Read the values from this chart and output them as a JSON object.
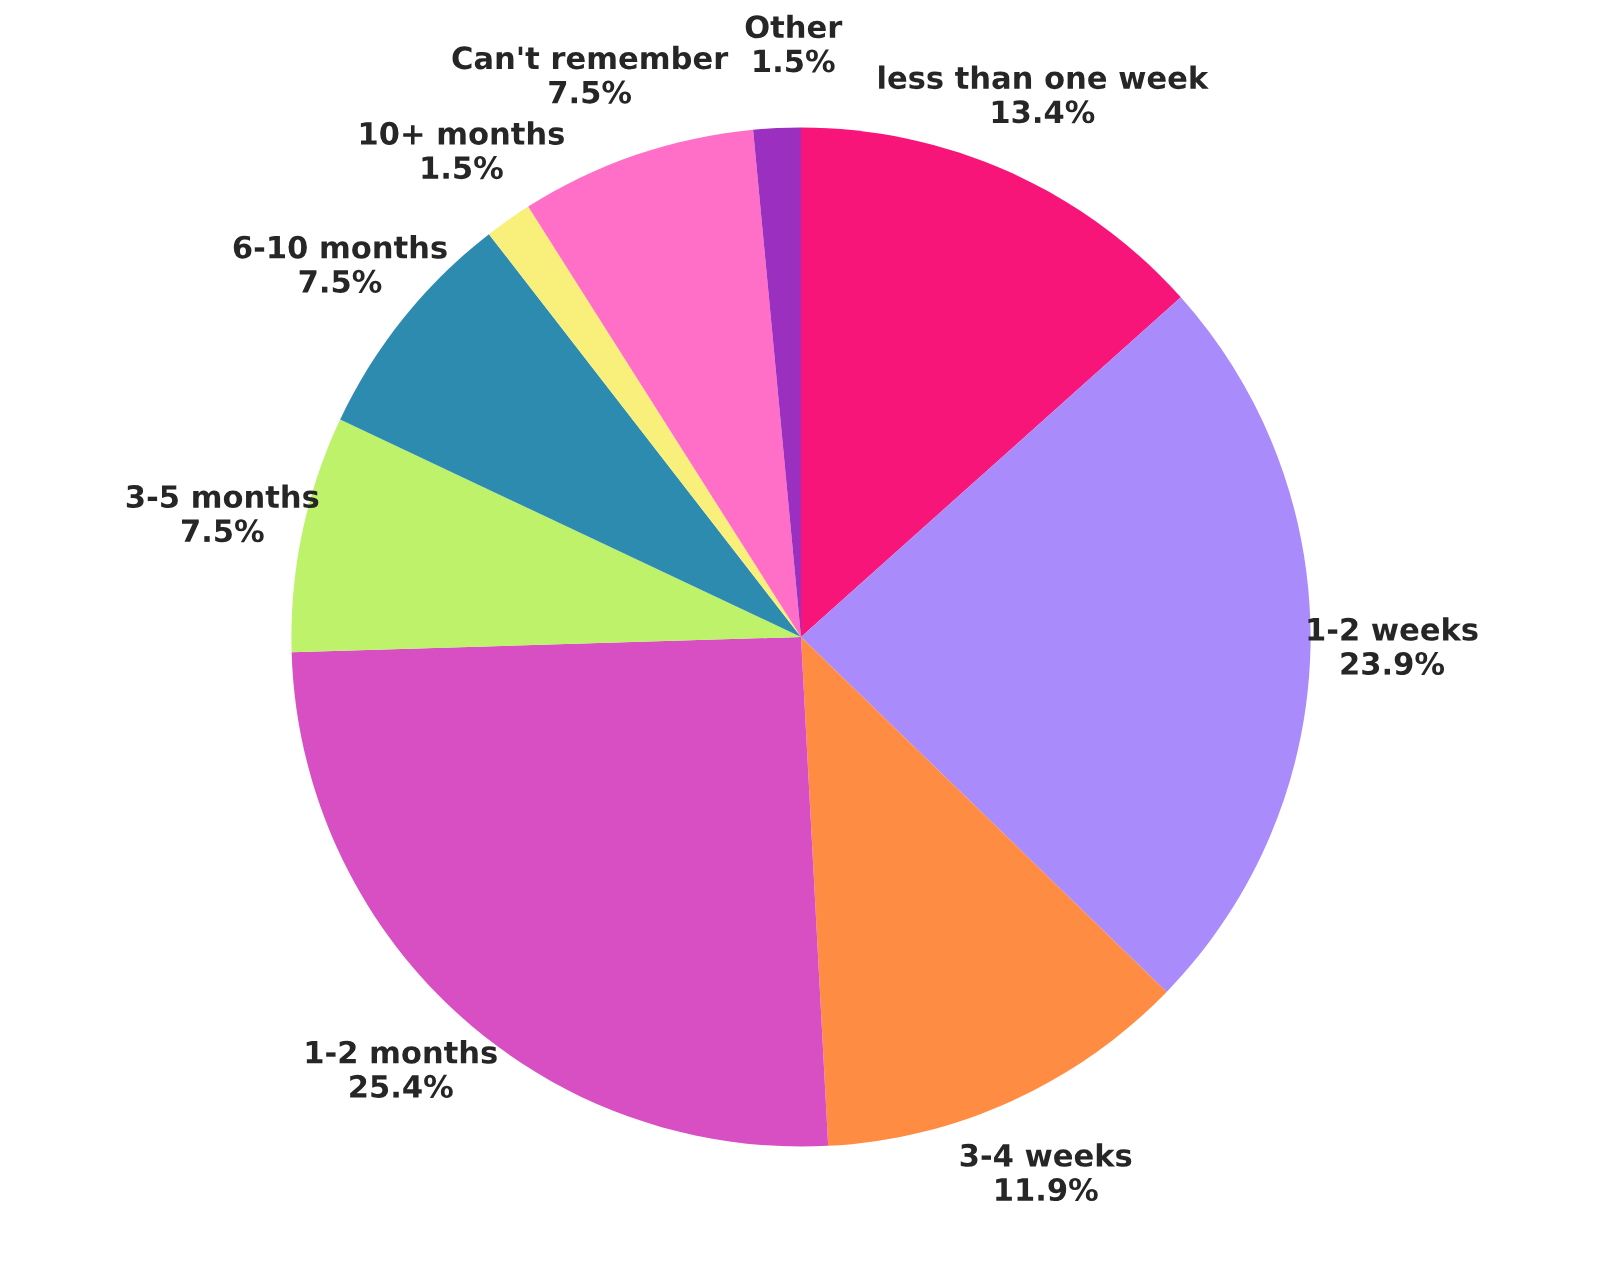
{
  "chart_data": {
    "type": "pie",
    "categories": [
      "less than one week",
      "1-2 weeks",
      "3-4 weeks",
      "1-2 months",
      "3-5 months",
      "6-10 months",
      "10+ months",
      "Can't remember",
      "Other"
    ],
    "values": [
      13.4,
      23.9,
      11.9,
      25.4,
      7.5,
      7.5,
      1.5,
      7.5,
      1.5
    ],
    "value_labels": [
      "13.4%",
      "23.9%",
      "11.9%",
      "25.4%",
      "7.5%",
      "7.5%",
      "1.5%",
      "7.5%",
      "1.5%"
    ],
    "colors": [
      "#f7157a",
      "#a98bfc",
      "#ff8c42",
      "#d84fc4",
      "#bdf26a",
      "#2e8bb0",
      "#f8f07a",
      "#ff6ec7",
      "#9b2fc0"
    ],
    "legend": false
  }
}
